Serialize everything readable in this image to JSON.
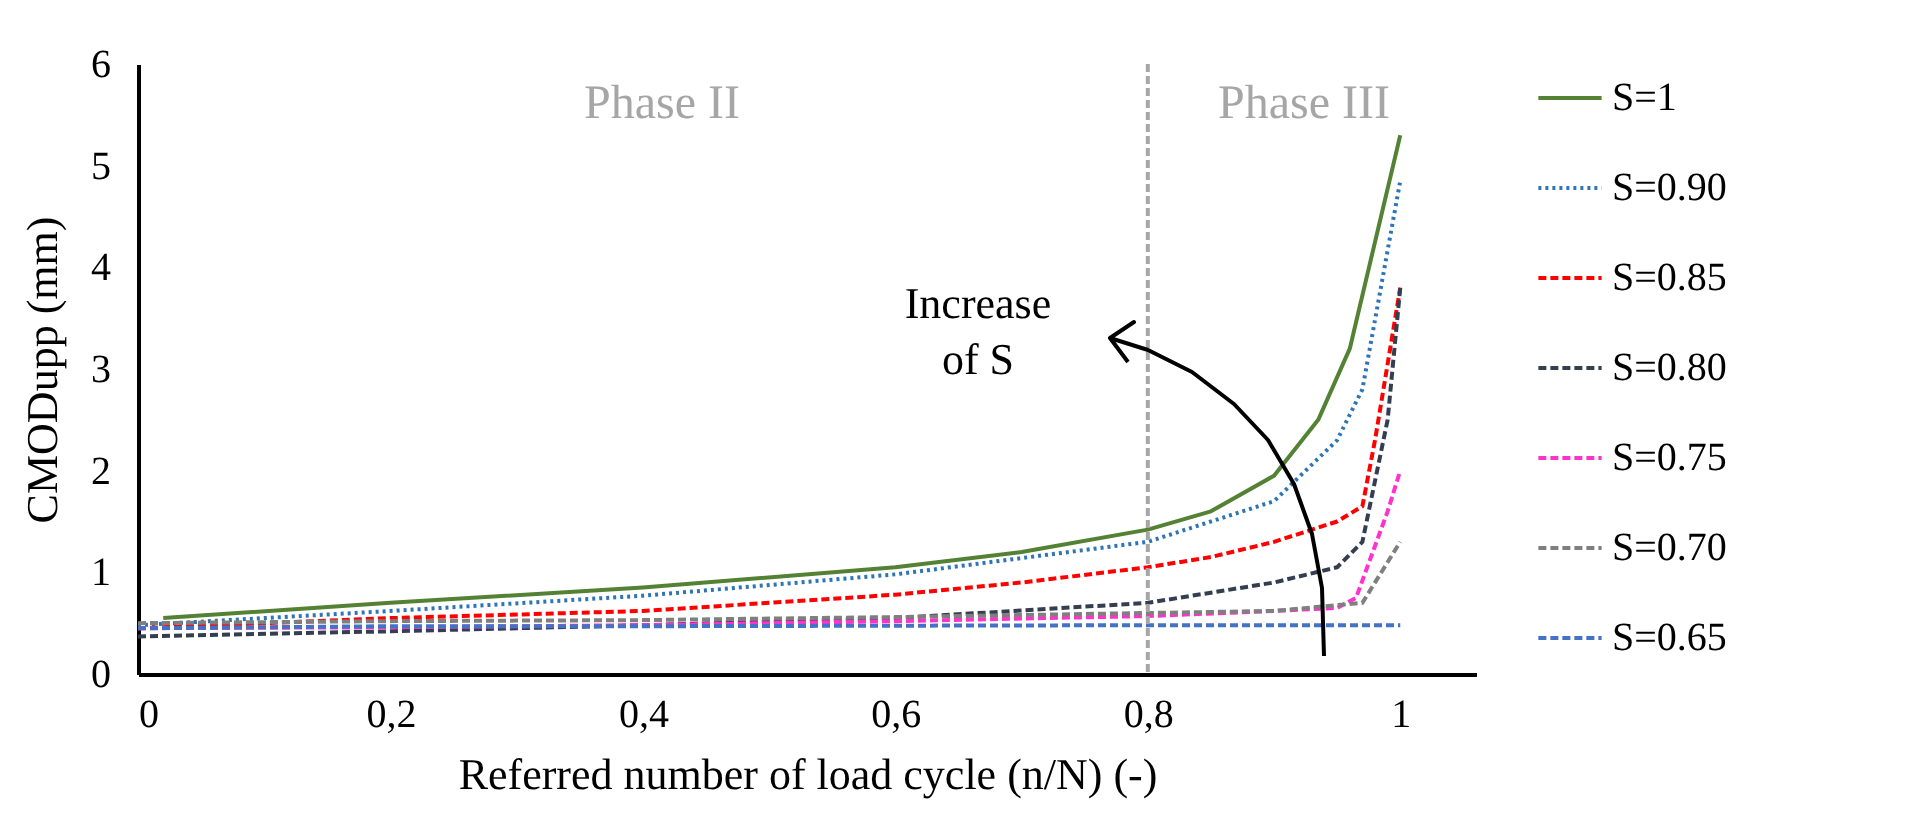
{
  "chart_data": {
    "type": "line",
    "xlabel": "Referred number of load cycle (n/N) (-)",
    "ylabel": "CMODupp (mm)",
    "xlim": [
      0,
      1.06
    ],
    "xticks": [
      0,
      {
        "value": 0.2,
        "label": "0,2"
      },
      {
        "value": 0.4,
        "label": "0,4"
      },
      {
        "value": 0.6,
        "label": "0,6"
      },
      {
        "value": 0.8,
        "label": "0,8"
      },
      1
    ],
    "ylim": [
      0,
      6
    ],
    "yticks": [
      0,
      1,
      2,
      3,
      4,
      5,
      6
    ],
    "grid": false,
    "legend": "right",
    "marker": "none",
    "ref_lines": [
      {
        "axis": "x",
        "value": 0.8,
        "color": "#a6a6a6",
        "line_style": "dashed"
      }
    ],
    "annotations": [
      "Phase II",
      "Phase III",
      "Increase of S"
    ],
    "series": [
      {
        "name": "S=1",
        "color": "#548235",
        "line_style": "solid",
        "x": [
          0.02,
          0.2,
          0.4,
          0.6,
          0.7,
          0.8,
          0.85,
          0.9,
          0.935,
          0.96,
          1.0
        ],
        "values": [
          0.55,
          0.7,
          0.85,
          1.05,
          1.2,
          1.42,
          1.6,
          1.95,
          2.5,
          3.2,
          5.3
        ]
      },
      {
        "name": "S=0.90",
        "color": "#2e75b6",
        "line_style": "dotted",
        "x": [
          0,
          0.2,
          0.4,
          0.6,
          0.8,
          0.9,
          0.95,
          0.97,
          1.0
        ],
        "values": [
          0.48,
          0.62,
          0.77,
          0.98,
          1.3,
          1.7,
          2.3,
          2.8,
          4.85
        ]
      },
      {
        "name": "S=0.85",
        "color": "#ff0000",
        "line_style": "dashed",
        "x": [
          0,
          0.2,
          0.4,
          0.6,
          0.7,
          0.8,
          0.85,
          0.9,
          0.95,
          0.97,
          0.98,
          1.0
        ],
        "values": [
          0.45,
          0.55,
          0.62,
          0.78,
          0.9,
          1.05,
          1.15,
          1.3,
          1.5,
          1.65,
          2.3,
          3.8
        ]
      },
      {
        "name": "S=0.80",
        "color": "#333f50",
        "line_style": "dashed",
        "x": [
          0,
          0.2,
          0.4,
          0.6,
          0.8,
          0.9,
          0.95,
          0.97,
          0.99,
          1.0
        ],
        "values": [
          0.37,
          0.42,
          0.48,
          0.55,
          0.7,
          0.9,
          1.05,
          1.3,
          2.5,
          3.8
        ]
      },
      {
        "name": "S=0.75",
        "color": "#ff33cc",
        "line_style": "dashed",
        "x": [
          0,
          0.2,
          0.4,
          0.6,
          0.8,
          0.9,
          0.95,
          0.965,
          0.99,
          1.0
        ],
        "values": [
          0.45,
          0.46,
          0.48,
          0.52,
          0.57,
          0.62,
          0.65,
          0.75,
          1.6,
          2.0
        ]
      },
      {
        "name": "S=0.70",
        "color": "#7f7f7f",
        "line_style": "dashed",
        "x": [
          0,
          0.2,
          0.4,
          0.6,
          0.8,
          0.9,
          0.97,
          1.0
        ],
        "values": [
          0.5,
          0.52,
          0.53,
          0.56,
          0.6,
          0.62,
          0.7,
          1.3
        ]
      },
      {
        "name": "S=0.65",
        "color": "#4472c4",
        "line_style": "dashed",
        "x": [
          0,
          0.2,
          0.4,
          0.8,
          1.0
        ],
        "values": [
          0.45,
          0.47,
          0.47,
          0.48,
          0.48
        ]
      }
    ]
  }
}
